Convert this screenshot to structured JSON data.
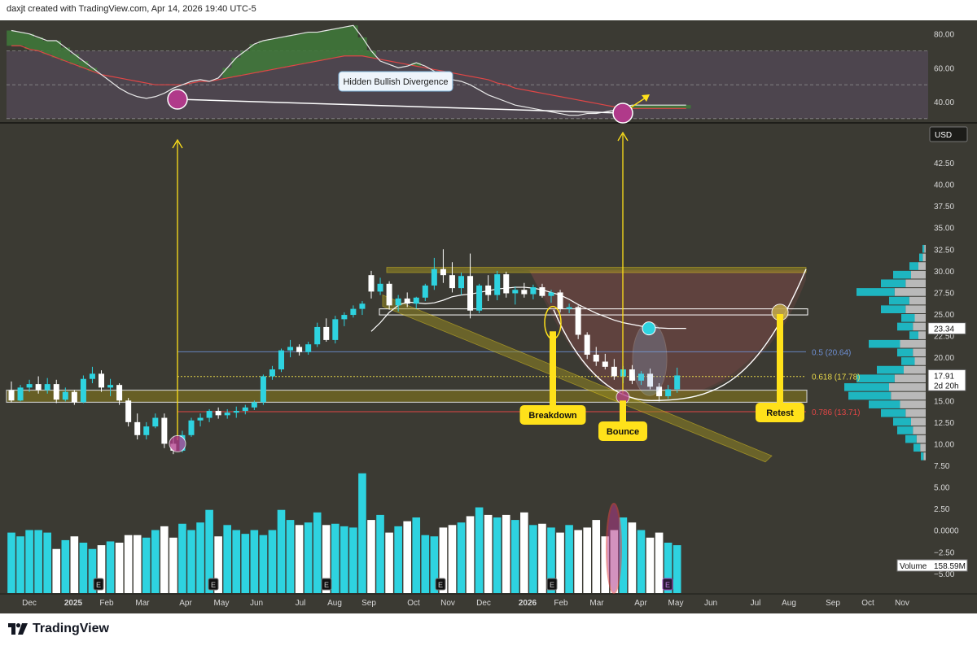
{
  "header": {
    "credit": "daxjt created with TradingView.com, Apr 14, 2026 19:40 UTC-5"
  },
  "footer": {
    "brand": "TradingView"
  },
  "colors": {
    "bg": "#3b3a33",
    "up": "#2ed3e0",
    "down": "#ffffff",
    "yellow": "#ffe11a",
    "rsi_line": "#e8e8e8",
    "rsi_ma": "#e04646",
    "magenta": "#b03a8a",
    "fib_05": "#6d8fd4",
    "fib_0618": "#e8d84a",
    "fib_0786": "#e04646"
  },
  "chart_data": [
    {
      "type": "line",
      "name": "rsi-panel",
      "ylim": [
        28,
        88
      ],
      "ticks": [
        "80.00",
        "60.00",
        "40.00"
      ],
      "tick_values": [
        80,
        60,
        40
      ],
      "bands": [
        70,
        50,
        30
      ],
      "x_index_range": [
        0,
        75
      ],
      "series": [
        {
          "values": [
            82,
            81,
            80,
            78,
            76,
            76,
            72,
            68,
            64,
            60,
            56,
            52,
            48,
            45,
            43,
            42,
            43,
            45,
            48,
            50,
            52,
            53,
            52,
            54,
            60,
            66,
            70,
            74,
            76,
            77,
            78,
            79,
            80,
            81,
            81,
            82,
            83,
            84,
            85,
            78,
            70,
            64,
            62,
            60,
            61,
            63,
            61,
            58,
            55,
            53,
            52,
            50,
            47,
            44,
            42,
            40,
            38,
            37,
            36,
            35,
            34,
            33,
            32,
            32,
            33,
            33,
            34,
            35,
            37,
            38,
            38,
            38,
            38,
            38,
            38,
            38
          ]
        },
        {
          "values": [
            73,
            73,
            71,
            70,
            68,
            66,
            64,
            62,
            60,
            58,
            56,
            55,
            54,
            53,
            52,
            51,
            50,
            50,
            50,
            50,
            51,
            52,
            52,
            53,
            54,
            55,
            56,
            57,
            58,
            59,
            60,
            61,
            62,
            63,
            64,
            65,
            66,
            67,
            67,
            67,
            66,
            65,
            64,
            63,
            62,
            61,
            60,
            59,
            58,
            57,
            56,
            55,
            54,
            53,
            51,
            50,
            48,
            47,
            46,
            45,
            44,
            43,
            42,
            41,
            40,
            39,
            38,
            37,
            36,
            36,
            36,
            36,
            36,
            36,
            36,
            36
          ]
        }
      ],
      "annotations": [
        {
          "text": "Hidden Bullish Divergence"
        }
      ]
    },
    {
      "type": "candlestick",
      "name": "price-panel",
      "currency": "USD",
      "ylim": [
        6.25,
        45
      ],
      "ticks": [
        "42.50",
        "40.00",
        "37.50",
        "35.00",
        "32.50",
        "30.00",
        "27.50",
        "25.00",
        "22.50",
        "20.00",
        "17.50",
        "15.00",
        "12.50",
        "10.00",
        "7.50",
        "5.00",
        "2.50",
        "0.0000",
        "−2.50",
        "−5.00"
      ],
      "tick_values": [
        42.5,
        40,
        37.5,
        35,
        32.5,
        30,
        27.5,
        25,
        22.5,
        20,
        17.5,
        15,
        12.5,
        10,
        7.5,
        5,
        2.5,
        0,
        -2.5,
        -5
      ],
      "x_index_range": [
        0,
        75
      ],
      "x_ticks": [
        "Dec",
        "2025",
        "Feb",
        "Mar",
        "Apr",
        "May",
        "Jun",
        "Jul",
        "Aug",
        "Sep",
        "Oct",
        "Nov",
        "Dec",
        "2026",
        "Feb",
        "Mar",
        "Apr",
        "May",
        "Jun",
        "Jul",
        "Aug",
        "Sep",
        "Oct",
        "Nov"
      ],
      "x_tick_positions": [
        36,
        90,
        131,
        175,
        228,
        272,
        315,
        369,
        411,
        453,
        508,
        550,
        594,
        648,
        689,
        733,
        787,
        830,
        873,
        928,
        969,
        1023,
        1066,
        1108
      ],
      "candles": [
        [
          16.2,
          17.2,
          14.8,
          15.0
        ],
        [
          15.0,
          16.8,
          14.9,
          16.5
        ],
        [
          16.5,
          17.4,
          16.0,
          16.9
        ],
        [
          16.9,
          17.8,
          15.8,
          16.2
        ],
        [
          16.2,
          17.6,
          15.8,
          16.9
        ],
        [
          16.9,
          17.4,
          14.7,
          15.1
        ],
        [
          15.1,
          16.5,
          14.9,
          16.0
        ],
        [
          16.0,
          16.2,
          14.5,
          14.8
        ],
        [
          14.8,
          17.9,
          14.7,
          17.5
        ],
        [
          17.5,
          18.9,
          17.0,
          18.1
        ],
        [
          18.1,
          18.5,
          16.0,
          16.5
        ],
        [
          16.5,
          17.5,
          15.5,
          16.8
        ],
        [
          16.8,
          17.0,
          14.5,
          15.0
        ],
        [
          15.0,
          15.3,
          12.0,
          12.5
        ],
        [
          12.5,
          13.5,
          10.5,
          11.0
        ],
        [
          11.0,
          12.5,
          10.5,
          12.0
        ],
        [
          12.0,
          13.5,
          11.8,
          13.0
        ],
        [
          13.0,
          13.5,
          9.5,
          10.0
        ],
        [
          10.0,
          10.8,
          8.8,
          9.2
        ],
        [
          9.2,
          11.5,
          9.0,
          11.0
        ],
        [
          11.0,
          13.0,
          10.8,
          12.7
        ],
        [
          12.7,
          13.5,
          12.0,
          13.0
        ],
        [
          13.0,
          14.0,
          12.5,
          13.8
        ],
        [
          13.8,
          14.2,
          12.9,
          13.3
        ],
        [
          13.3,
          14.0,
          12.9,
          13.6
        ],
        [
          13.6,
          14.3,
          13.0,
          13.8
        ],
        [
          13.8,
          14.5,
          13.4,
          14.2
        ],
        [
          14.2,
          15.0,
          13.9,
          14.8
        ],
        [
          14.8,
          18.0,
          14.5,
          17.8
        ],
        [
          17.8,
          19.0,
          17.4,
          18.6
        ],
        [
          18.6,
          21.0,
          18.3,
          20.8
        ],
        [
          20.8,
          22.0,
          20.0,
          21.2
        ],
        [
          21.2,
          21.5,
          20.2,
          20.6
        ],
        [
          20.6,
          21.8,
          20.3,
          21.5
        ],
        [
          21.5,
          24.0,
          21.2,
          23.5
        ],
        [
          23.5,
          24.5,
          21.8,
          22.0
        ],
        [
          22.0,
          24.8,
          21.6,
          24.4
        ],
        [
          24.4,
          25.2,
          23.6,
          24.9
        ],
        [
          24.9,
          26.0,
          24.6,
          25.6
        ],
        [
          25.6,
          26.5,
          24.9,
          26.2
        ],
        [
          29.5,
          30.0,
          26.8,
          27.6
        ],
        [
          27.6,
          29.2,
          27.2,
          28.5
        ],
        [
          28.5,
          28.8,
          25.5,
          26.0
        ],
        [
          26.0,
          27.2,
          25.3,
          26.8
        ],
        [
          26.8,
          27.5,
          25.8,
          26.2
        ],
        [
          26.2,
          27.0,
          25.6,
          26.9
        ],
        [
          26.9,
          28.5,
          26.5,
          28.3
        ],
        [
          28.3,
          31.5,
          27.8,
          30.2
        ],
        [
          30.2,
          32.5,
          28.6,
          29.5
        ],
        [
          29.5,
          31.0,
          27.5,
          28.0
        ],
        [
          28.0,
          29.8,
          27.2,
          29.4
        ],
        [
          29.4,
          32.0,
          24.5,
          25.4
        ],
        [
          25.4,
          28.5,
          25.1,
          28.3
        ],
        [
          28.3,
          29.5,
          26.5,
          27.2
        ],
        [
          27.2,
          30.0,
          26.6,
          29.6
        ],
        [
          29.6,
          29.9,
          26.9,
          27.4
        ],
        [
          27.4,
          28.2,
          26.1,
          27.8
        ],
        [
          27.8,
          28.6,
          26.9,
          27.3
        ],
        [
          27.3,
          28.4,
          26.7,
          28.1
        ],
        [
          28.1,
          28.5,
          26.9,
          27.1
        ],
        [
          27.1,
          27.8,
          26.3,
          27.5
        ],
        [
          27.5,
          27.8,
          25.2,
          25.6
        ],
        [
          25.6,
          26.2,
          25.1,
          25.8
        ],
        [
          25.8,
          26.0,
          22.1,
          22.6
        ],
        [
          22.6,
          22.9,
          19.8,
          20.3
        ],
        [
          20.3,
          21.2,
          19.0,
          19.5
        ],
        [
          19.5,
          20.4,
          18.6,
          18.9
        ],
        [
          18.9,
          19.8,
          17.4,
          17.8
        ],
        [
          17.8,
          19.0,
          17.0,
          18.6
        ],
        [
          18.6,
          19.1,
          16.9,
          17.3
        ],
        [
          17.3,
          18.4,
          16.8,
          18.1
        ],
        [
          18.1,
          18.7,
          16.3,
          16.6
        ],
        [
          16.6,
          17.0,
          14.9,
          15.5
        ],
        [
          15.5,
          16.8,
          15.2,
          16.3
        ],
        [
          16.3,
          18.8,
          15.9,
          17.9
        ]
      ],
      "fib_levels": [
        {
          "label": "0.5 (20.64)",
          "value": 20.64
        },
        {
          "label": "0.618 (17.78)",
          "value": 17.78
        },
        {
          "label": "0.786 (13.71)",
          "value": 13.71
        }
      ],
      "price_labels": [
        {
          "label": "23.34",
          "value": 23.34
        },
        {
          "label": "17.91",
          "sub": "2d 20h",
          "value": 17.91
        }
      ],
      "annotations": [
        {
          "text": "Breakdown",
          "index": 63
        },
        {
          "text": "Bounce",
          "index": 72
        },
        {
          "text": "Retest"
        }
      ]
    },
    {
      "type": "bar",
      "name": "volume",
      "label": "Volume",
      "last_value": "158.59M",
      "values": [
        48,
        45,
        50,
        50,
        48,
        35,
        42,
        45,
        40,
        35,
        38,
        41,
        40,
        46,
        46,
        44,
        50,
        53,
        44,
        55,
        50,
        56,
        66,
        45,
        54,
        50,
        47,
        50,
        46,
        50,
        66,
        58,
        54,
        56,
        64,
        54,
        55,
        53,
        52,
        95,
        58,
        62,
        48,
        53,
        57,
        60,
        46,
        45,
        52,
        54,
        56,
        61,
        68,
        62,
        60,
        62,
        58,
        64,
        54,
        55,
        52,
        48,
        54,
        50,
        52,
        58,
        45,
        50,
        60,
        56,
        50,
        44,
        48,
        40,
        38
      ],
      "volume_up": [
        true,
        true,
        true,
        true,
        true,
        false,
        true,
        false,
        true,
        true,
        false,
        true,
        false,
        false,
        false,
        true,
        true,
        false,
        false,
        true,
        true,
        true,
        true,
        false,
        true,
        true,
        true,
        true,
        true,
        true,
        true,
        true,
        false,
        true,
        true,
        false,
        true,
        true,
        true,
        true,
        false,
        true,
        false,
        true,
        false,
        true,
        true,
        true,
        false,
        false,
        true,
        false,
        true,
        false,
        true,
        false,
        true,
        false,
        true,
        false,
        true,
        false,
        true,
        false,
        false,
        false,
        false,
        false,
        true,
        false,
        true,
        false,
        false,
        true,
        true
      ],
      "earnings_marker": "E"
    }
  ]
}
